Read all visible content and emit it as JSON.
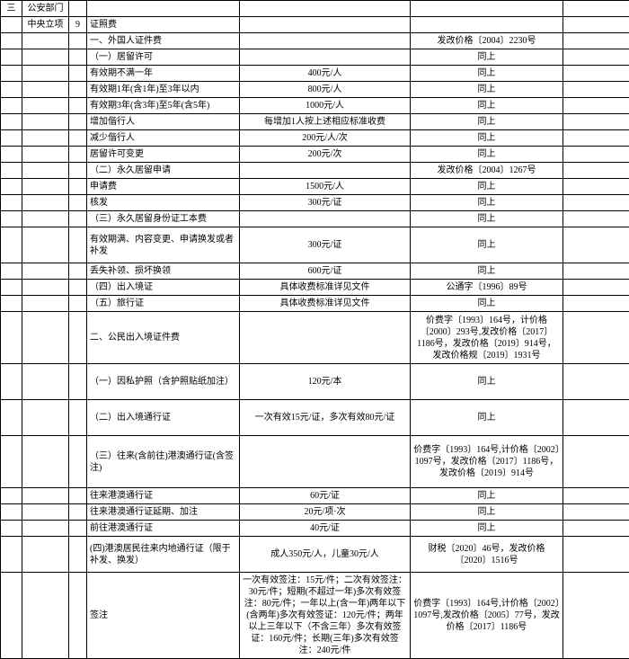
{
  "rows": [
    {
      "c1": "三",
      "c2": "公安部门",
      "c3": "",
      "c4": "",
      "c5": "",
      "c6": "",
      "c7": ""
    },
    {
      "c1": "",
      "c2": "中央立项",
      "c3": "9",
      "c4": "证照费",
      "c5": "",
      "c6": "",
      "c7": ""
    },
    {
      "c1": "",
      "c2": "",
      "c3": "",
      "c4": "一、外国人证件费",
      "c5": "",
      "c6": "发改价格〔2004〕2230号",
      "c7": ""
    },
    {
      "c1": "",
      "c2": "",
      "c3": "",
      "c4": "（一）居留许可",
      "c5": "",
      "c6": "同上",
      "c7": ""
    },
    {
      "c1": "",
      "c2": "",
      "c3": "",
      "c4": "有效期不满一年",
      "c5": "400元/人",
      "c6": "同上",
      "c7": ""
    },
    {
      "c1": "",
      "c2": "",
      "c3": "",
      "c4": "有效期1年(含1年)至3年以内",
      "c5": "800元/人",
      "c6": "同上",
      "c7": ""
    },
    {
      "c1": "",
      "c2": "",
      "c3": "",
      "c4": "有效期3年(含3年)至5年(含5年)",
      "c5": "1000元/人",
      "c6": "同上",
      "c7": ""
    },
    {
      "c1": "",
      "c2": "",
      "c3": "",
      "c4": "增加偕行人",
      "c5": "每增加1人按上述相应标准收费",
      "c6": "同上",
      "c7": ""
    },
    {
      "c1": "",
      "c2": "",
      "c3": "",
      "c4": "减少偕行人",
      "c5": "200元/人/次",
      "c6": "同上",
      "c7": ""
    },
    {
      "c1": "",
      "c2": "",
      "c3": "",
      "c4": "居留许可变更",
      "c5": "200元/次",
      "c6": "同上",
      "c7": ""
    },
    {
      "c1": "",
      "c2": "",
      "c3": "",
      "c4": "（二）永久居留申请",
      "c5": "",
      "c6": "发改价格〔2004〕1267号",
      "c7": ""
    },
    {
      "c1": "",
      "c2": "",
      "c3": "",
      "c4": "申请费",
      "c5": "1500元/人",
      "c6": "同上",
      "c7": ""
    },
    {
      "c1": "",
      "c2": "",
      "c3": "",
      "c4": "核发",
      "c5": "300元/证",
      "c6": "同上",
      "c7": ""
    },
    {
      "c1": "",
      "c2": "",
      "c3": "",
      "c4": "（三）永久居留身份证工本费",
      "c5": "",
      "c6": "同上",
      "c7": ""
    },
    {
      "c1": "",
      "c2": "",
      "c3": "",
      "c4": "有效期满、内容变更、申请换发或者补发",
      "c5": "300元/证",
      "c6": "同上",
      "c7": "",
      "cls": "med"
    },
    {
      "c1": "",
      "c2": "",
      "c3": "",
      "c4": "丢失补领、损坏换领",
      "c5": "600元/证",
      "c6": "同上",
      "c7": ""
    },
    {
      "c1": "",
      "c2": "",
      "c3": "",
      "c4": "（四）出入境证",
      "c5": "具体收费标准详见文件",
      "c6": "公通字〔1996〕89号",
      "c7": ""
    },
    {
      "c1": "",
      "c2": "",
      "c3": "",
      "c4": "（五）旅行证",
      "c5": "具体收费标准详见文件",
      "c6": "同上",
      "c7": ""
    },
    {
      "c1": "",
      "c2": "",
      "c3": "",
      "c4": "二、公民出入境证件费",
      "c5": "",
      "c6": "价费字〔1993〕164号，计价格〔2000〕293号,发改价格〔2017〕1186号，发改价格〔2019〕914号，发改价格规〔2019〕1931号",
      "c7": "",
      "cls": "tall"
    },
    {
      "c1": "",
      "c2": "",
      "c3": "",
      "c4": "（一）因私护照（含护照贴纸加注）",
      "c5": "120元/本",
      "c6": "同上",
      "c7": "",
      "cls": "med"
    },
    {
      "c1": "",
      "c2": "",
      "c3": "",
      "c4": "（二）出入境通行证",
      "c5": "一次有效15元/证，多次有效80元/证",
      "c6": "同上",
      "c7": "",
      "cls": "med"
    },
    {
      "c1": "",
      "c2": "",
      "c3": "",
      "c4": "（三）往来(含前往)港澳通行证(含签注)",
      "c5": "",
      "c6": "价费字〔1993〕164号,计价格〔2002〕1097号，发改价格〔2017〕1186号，发改价格〔2019〕914号",
      "c7": "",
      "cls": "tall"
    },
    {
      "c1": "",
      "c2": "",
      "c3": "",
      "c4": "往来港澳通行证",
      "c5": "60元/证",
      "c6": "同上",
      "c7": ""
    },
    {
      "c1": "",
      "c2": "",
      "c3": "",
      "c4": "往来港澳通行证延期、加注",
      "c5": "20元/项·次",
      "c6": "同上",
      "c7": ""
    },
    {
      "c1": "",
      "c2": "",
      "c3": "",
      "c4": "前往港澳通行证",
      "c5": "40元/证",
      "c6": "同上",
      "c7": ""
    },
    {
      "c1": "",
      "c2": "",
      "c3": "",
      "c4": "(四)港澳居民往来内地通行证（限于补发、换发）",
      "c5": "成人350元/人，儿童30元/人",
      "c6": "财税〔2020〕46号，发改价格〔2020〕1516号",
      "c7": "",
      "cls": "med"
    },
    {
      "c1": "",
      "c2": "",
      "c3": "",
      "c4": "签注",
      "c5": "一次有效签注：15元/件；二次有效签注：30元/件；短期(不超过一年)多次有效签注：80元/件；一年以上(含一年)两年以下(含两年)多次有效签证：120元/件；两年以上三年以下（不含三年）多次有效签证：160元/件；长期(三年)多次有效签注：240元/件",
      "c6": "价费字〔1993〕164号,计价格〔2002〕1097号,发改价格〔2005〕77号，发改价格〔2017〕1186号",
      "c7": "",
      "cls": "tall"
    }
  ]
}
